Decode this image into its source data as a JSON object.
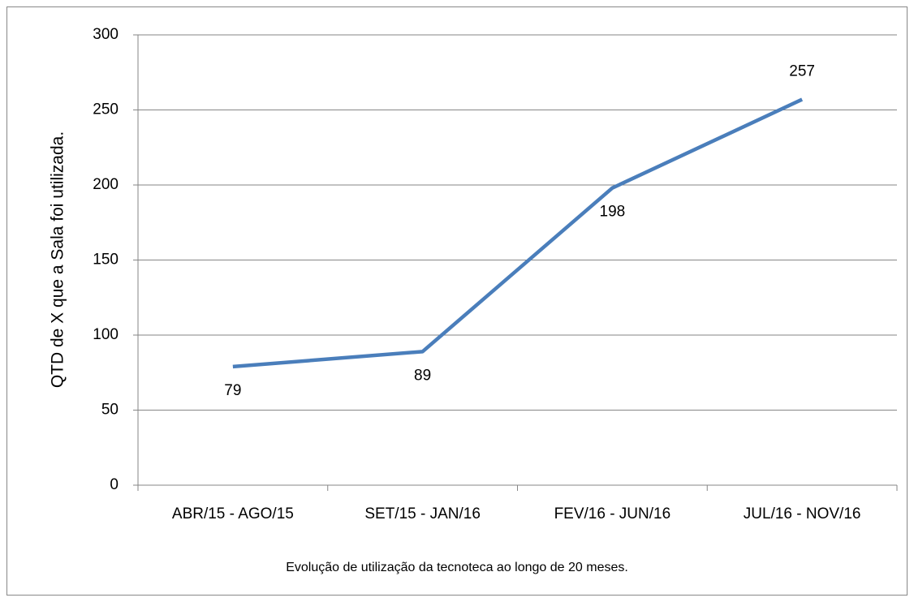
{
  "chart_data": {
    "type": "line",
    "y_label": "QTD de X que a Sala foi utilizada.",
    "x_label": "Evolução de utilização da tecnoteca ao longo de 20 meses.",
    "categories": [
      "ABR/15 - AGO/15",
      "SET/15 - JAN/16",
      "FEV/16 - JUN/16",
      "JUL/16 - NOV/16"
    ],
    "series": [
      {
        "color": "#4a7ebb",
        "values": [
          79,
          89,
          198,
          257
        ]
      }
    ],
    "ylim": [
      0,
      300
    ],
    "yticks": [
      0,
      50,
      100,
      150,
      200,
      250,
      300
    ],
    "grid": true
  }
}
